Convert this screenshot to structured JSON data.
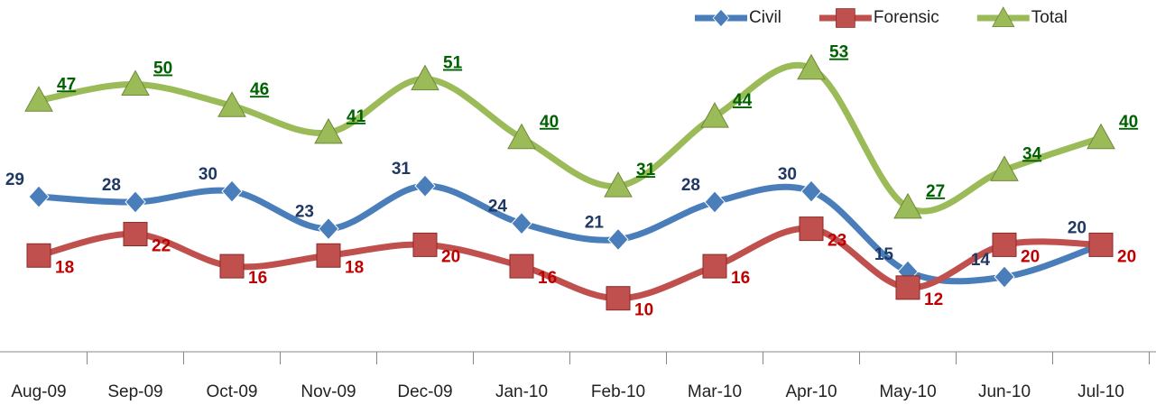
{
  "chart_data": {
    "type": "line",
    "categories": [
      "Aug-09",
      "Sep-09",
      "Oct-09",
      "Nov-09",
      "Dec-09",
      "Jan-10",
      "Feb-10",
      "Mar-10",
      "Apr-10",
      "May-10",
      "Jun-10",
      "Jul-10"
    ],
    "series": [
      {
        "name": "Civil",
        "color": "#4a7ebb",
        "label_color": "#1f3864",
        "marker": "diamond",
        "values": [
          29,
          28,
          30,
          23,
          31,
          24,
          21,
          28,
          30,
          15,
          14,
          20
        ]
      },
      {
        "name": "Forensic",
        "color": "#c0504d",
        "label_color": "#c00000",
        "marker": "square",
        "values": [
          18,
          22,
          16,
          18,
          20,
          16,
          10,
          16,
          23,
          12,
          20,
          20
        ]
      },
      {
        "name": "Total",
        "color": "#9bbb59",
        "label_color": "#006100",
        "marker": "triangle",
        "values": [
          47,
          50,
          46,
          41,
          51,
          40,
          31,
          44,
          53,
          27,
          34,
          40
        ]
      }
    ],
    "legend": "top-right",
    "grid": false
  }
}
